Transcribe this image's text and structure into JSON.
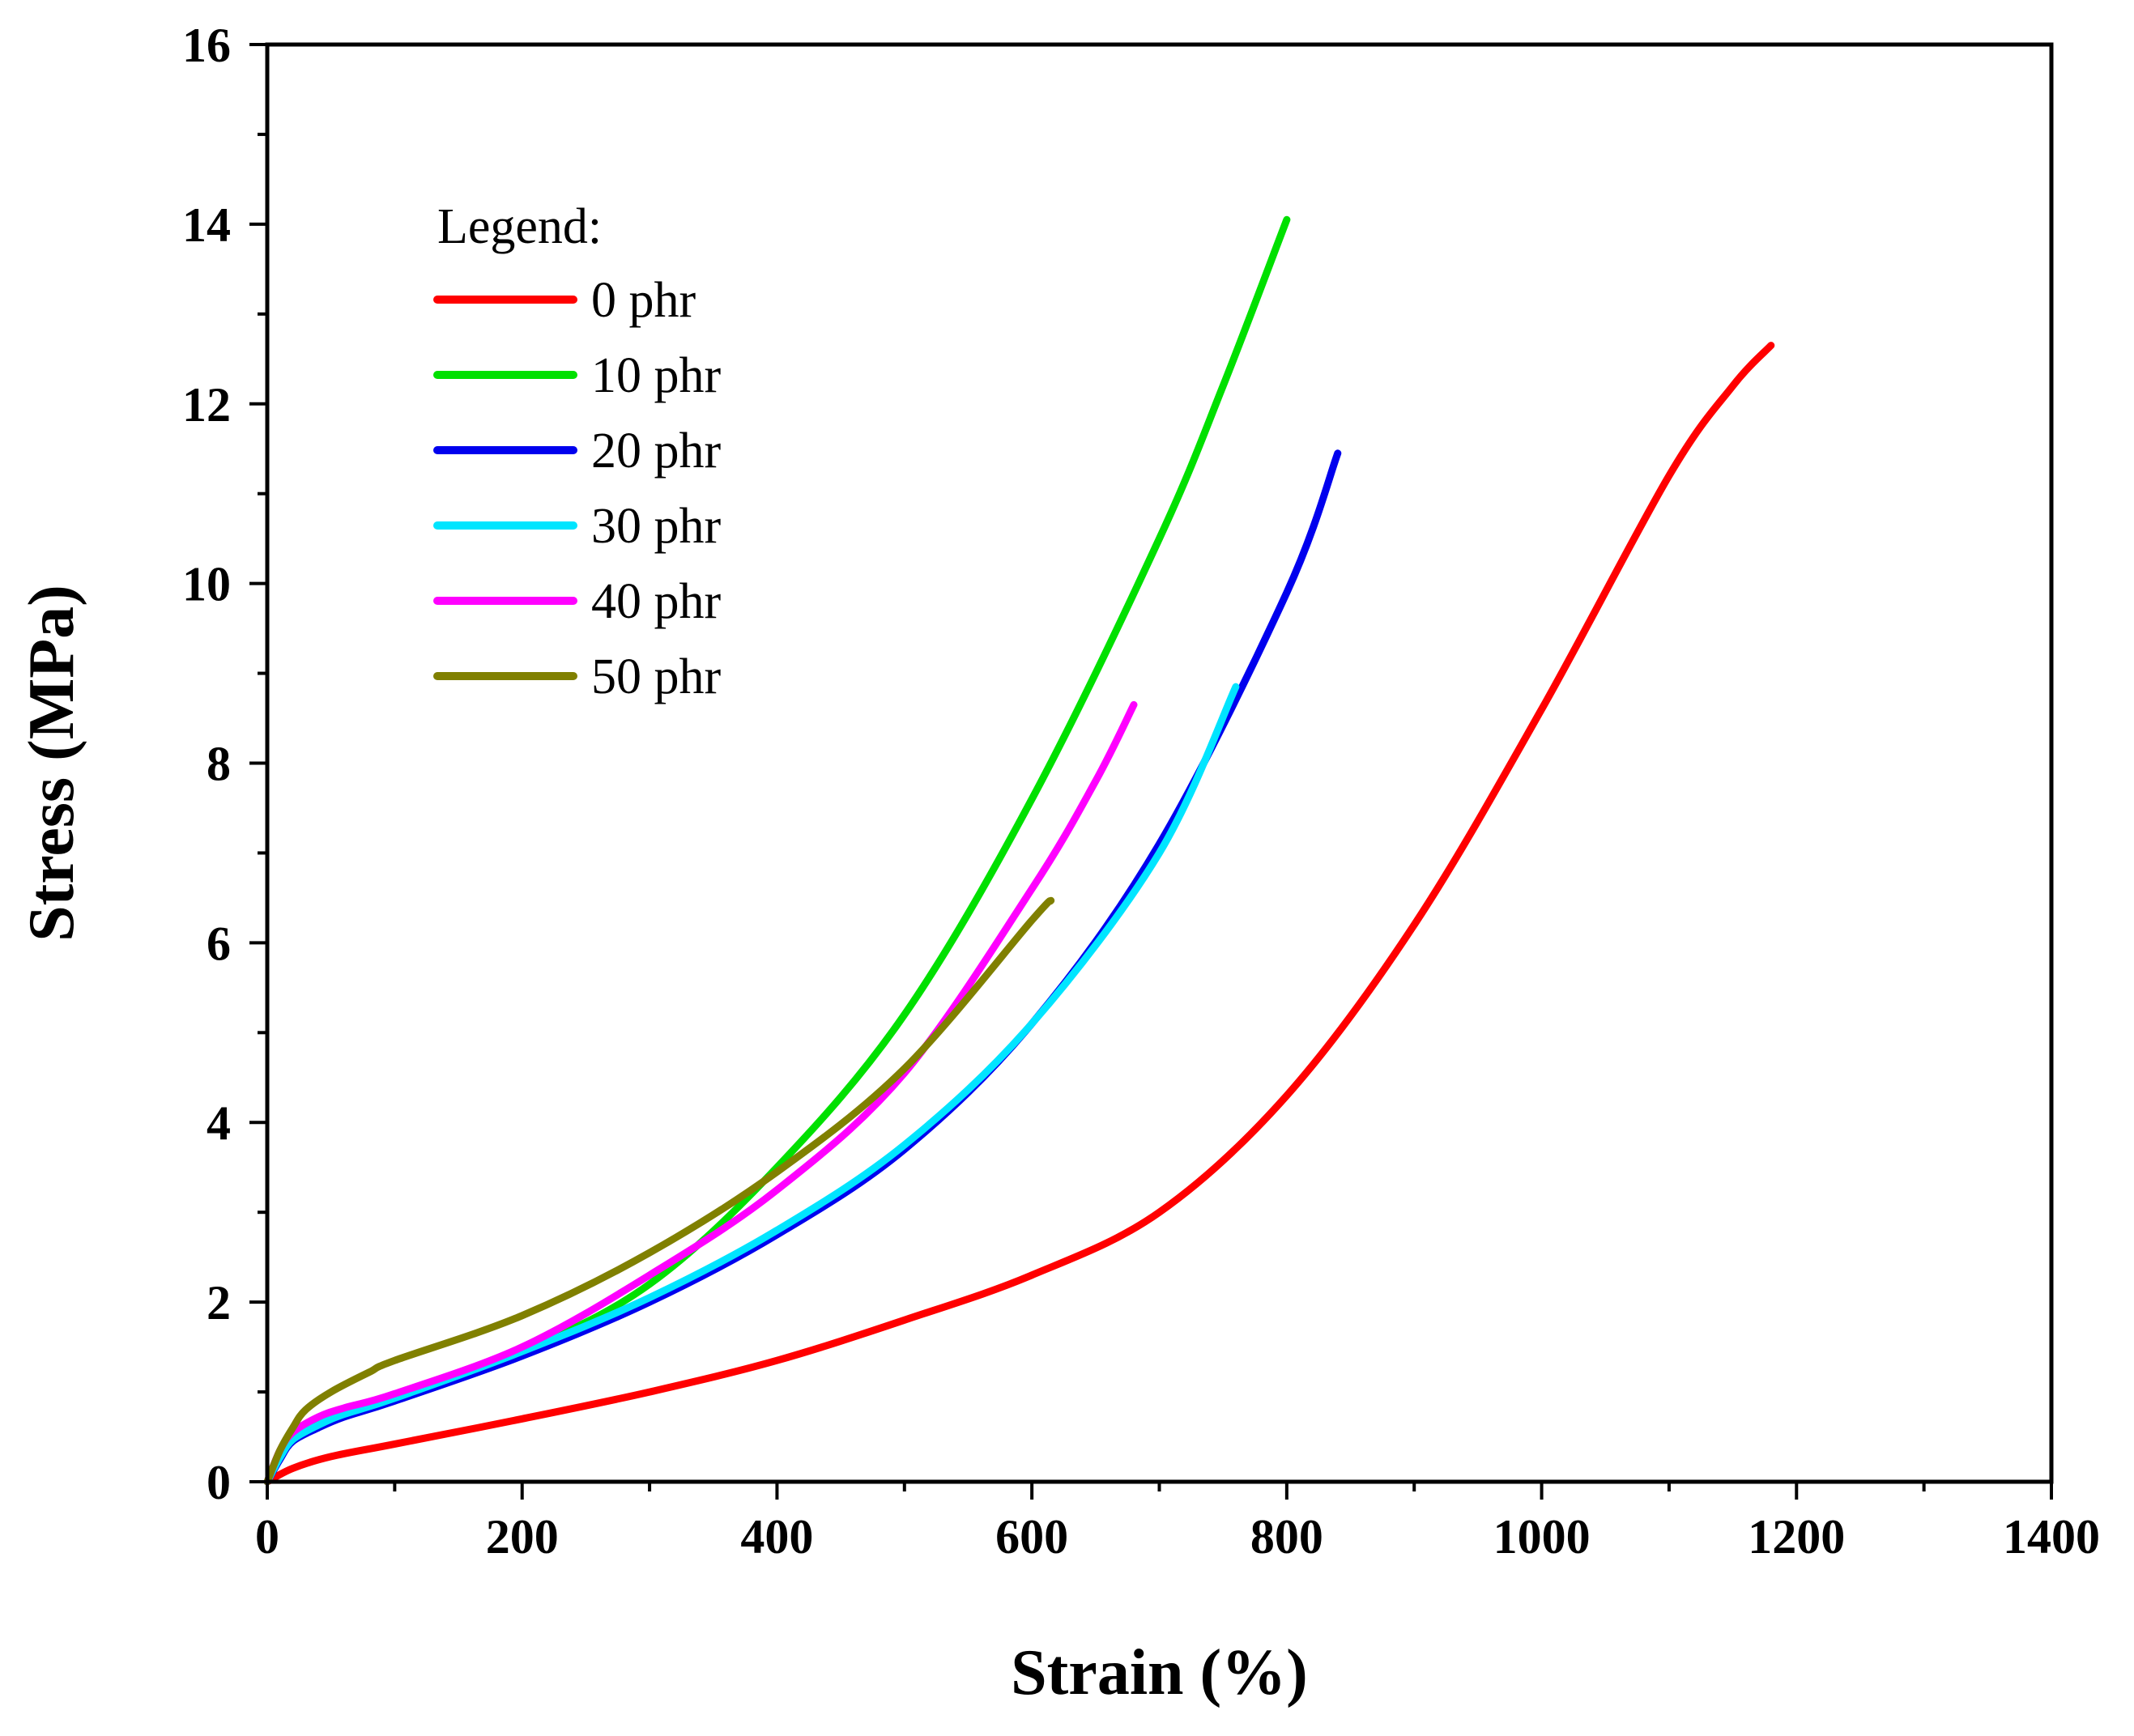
{
  "chart_data": {
    "type": "line",
    "title": "",
    "xlabel": "Strain (%)",
    "ylabel": "Stress (MPa)",
    "xlim": [
      0,
      1400
    ],
    "ylim": [
      0,
      16
    ],
    "xticks": [
      0,
      200,
      400,
      600,
      800,
      1000,
      1200,
      1400
    ],
    "yticks": [
      0,
      2,
      4,
      6,
      8,
      10,
      12,
      14,
      16
    ],
    "grid": false,
    "legend_title": "Legend:",
    "legend_position": "top-left",
    "series": [
      {
        "name": "0 phr",
        "color": "#ff0000",
        "x": [
          0,
          20,
          50,
          100,
          200,
          300,
          400,
          500,
          600,
          700,
          800,
          900,
          1000,
          1100,
          1150,
          1180
        ],
        "y": [
          0,
          0.15,
          0.28,
          0.42,
          0.7,
          1.0,
          1.35,
          1.8,
          2.3,
          3.0,
          4.3,
          6.2,
          8.6,
          11.2,
          12.2,
          12.65
        ]
      },
      {
        "name": "10 phr",
        "color": "#00e000",
        "x": [
          0,
          10,
          20,
          40,
          60,
          100,
          200,
          300,
          400,
          500,
          600,
          700,
          750,
          800
        ],
        "y": [
          0,
          0.3,
          0.5,
          0.7,
          0.8,
          0.95,
          1.45,
          2.2,
          3.5,
          5.2,
          7.6,
          10.5,
          12.2,
          14.05
        ]
      },
      {
        "name": "20 phr",
        "color": "#0000ee",
        "x": [
          0,
          10,
          20,
          40,
          60,
          100,
          200,
          300,
          400,
          500,
          600,
          700,
          800,
          840
        ],
        "y": [
          0,
          0.25,
          0.45,
          0.6,
          0.72,
          0.9,
          1.4,
          2.0,
          2.75,
          3.7,
          5.1,
          7.1,
          9.9,
          11.45
        ]
      },
      {
        "name": "30 phr",
        "color": "#00e5ff",
        "x": [
          0,
          10,
          20,
          40,
          60,
          100,
          200,
          300,
          400,
          500,
          600,
          700,
          760
        ],
        "y": [
          0,
          0.27,
          0.47,
          0.63,
          0.75,
          0.93,
          1.45,
          2.05,
          2.8,
          3.75,
          5.1,
          7.0,
          8.85
        ]
      },
      {
        "name": "40 phr",
        "color": "#ff00ff",
        "x": [
          0,
          10,
          20,
          40,
          60,
          100,
          200,
          300,
          400,
          500,
          600,
          650,
          680
        ],
        "y": [
          0,
          0.35,
          0.55,
          0.72,
          0.82,
          0.98,
          1.5,
          2.3,
          3.25,
          4.55,
          6.6,
          7.8,
          8.65
        ]
      },
      {
        "name": "50 phr",
        "color": "#808000",
        "x": [
          0,
          10,
          20,
          30,
          50,
          80,
          100,
          200,
          300,
          400,
          500,
          600,
          615
        ],
        "y": [
          0,
          0.35,
          0.6,
          0.8,
          1.0,
          1.22,
          1.35,
          1.85,
          2.55,
          3.45,
          4.6,
          6.25,
          6.47
        ]
      }
    ]
  }
}
